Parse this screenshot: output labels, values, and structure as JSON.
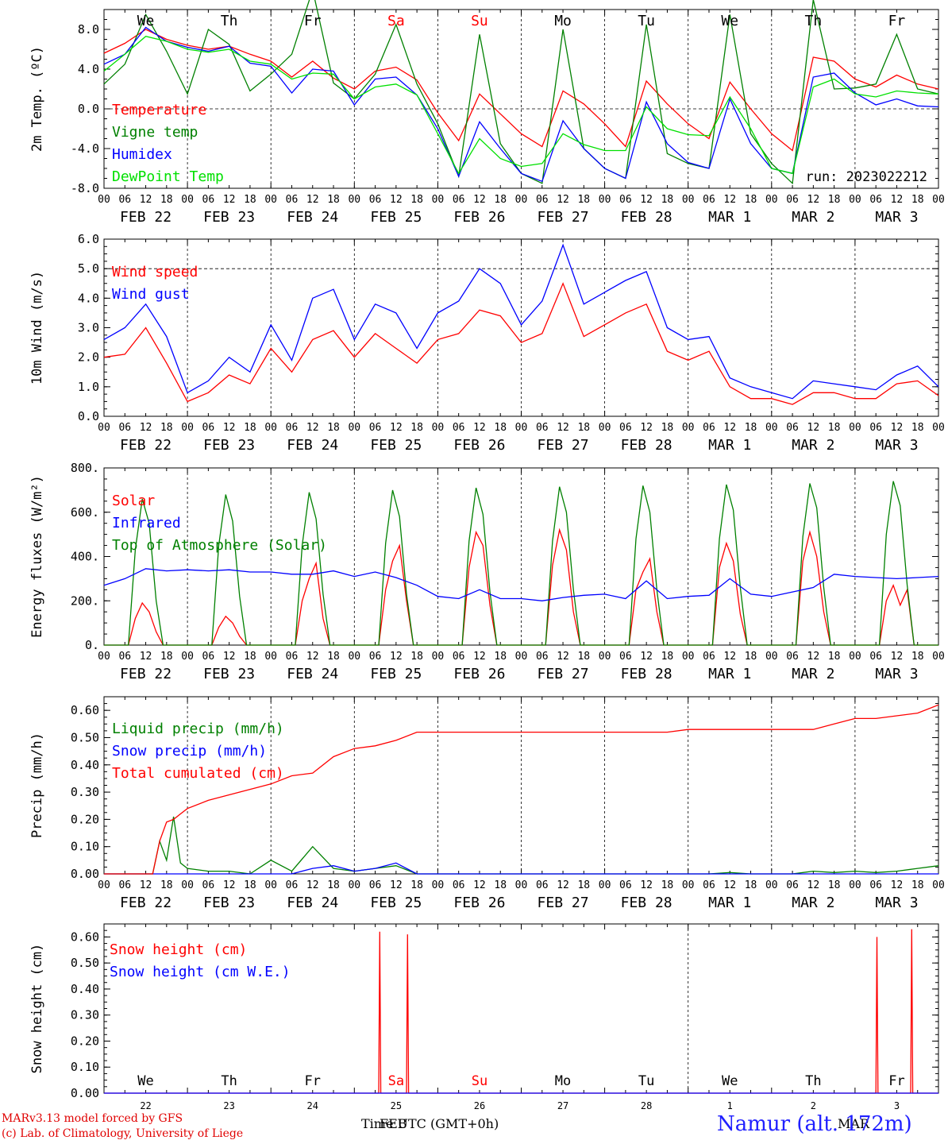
{
  "run_label": "run: 2023022212",
  "model_credit": "MARv3.13 model forced by GFS",
  "lab_credit": "(c) Lab. of Climatology, University of Liege",
  "x_axis_title": "Time UTC (GMT+0h)",
  "x_axis_title_feb": "FEB",
  "x_axis_title_mar": "MAR",
  "station_label": "Namur (alt. 172m)",
  "colors": {
    "red": "#ff0000",
    "blue": "#0000ff",
    "green": "#008000",
    "lightgreen": "#00e000",
    "weekend": "#ff0000"
  },
  "weekdays": [
    "We",
    "Th",
    "Fr",
    "Sa",
    "Su",
    "Mo",
    "Tu",
    "We",
    "Th",
    "Fr"
  ],
  "weekend_days": [
    "Sa",
    "Su"
  ],
  "hour_ticks": [
    "00",
    "06",
    "12",
    "18"
  ],
  "last_tick": "00",
  "date_labels": [
    "FEB 22",
    "FEB 23",
    "FEB 24",
    "FEB 25",
    "FEB 26",
    "FEB 27",
    "FEB 28",
    "MAR  1",
    "MAR  2",
    "MAR  3"
  ],
  "snow_day_numbers": [
    "22",
    "23",
    "24",
    "25",
    "26",
    "27",
    "28",
    "1",
    "2",
    "3"
  ],
  "chart_data": [
    {
      "type": "line",
      "ylabel": "2m Temp. (ºC)",
      "ylim": [
        -8,
        10
      ],
      "yticks": [
        "-8.0",
        "-4.0",
        "0.0",
        "4.0",
        "8.0"
      ],
      "ytick_values": [
        -8,
        -4,
        0,
        4,
        8
      ],
      "reference_lines": [
        0
      ],
      "x_hours": [
        0,
        6,
        12,
        18,
        24,
        30,
        36,
        42,
        48,
        54,
        60,
        66,
        72,
        78,
        84,
        90,
        96,
        102,
        108,
        114,
        120,
        126,
        132,
        138,
        144,
        150,
        156,
        162,
        168,
        174,
        180,
        186,
        192,
        198,
        204,
        210,
        216,
        222,
        228,
        234,
        240
      ],
      "series": [
        {
          "name": "Temperature",
          "color": "red",
          "values": [
            5.6,
            6.6,
            8.0,
            7.0,
            6.4,
            6.0,
            6.3,
            5.5,
            4.8,
            3.2,
            4.8,
            3.1,
            2.0,
            3.8,
            4.2,
            2.9,
            -0.4,
            -3.2,
            1.5,
            -0.5,
            -2.5,
            -3.8,
            1.8,
            0.5,
            -1.5,
            -3.8,
            2.8,
            0.5,
            -1.5,
            -3.0,
            2.7,
            0,
            -2.5,
            -4.2,
            5.2,
            4.8,
            3.0,
            2.2,
            3.4,
            2.5,
            2.0
          ]
        },
        {
          "name": "Vigne temp",
          "color": "green",
          "values": [
            2.5,
            4.5,
            9.5,
            5.8,
            1.5,
            8.0,
            6.5,
            1.8,
            3.5,
            5.5,
            12.0,
            2.6,
            1.0,
            3.5,
            8.5,
            2.5,
            -1.5,
            -6.8,
            7.5,
            -3.5,
            -6.5,
            -7.5,
            8.0,
            -4.0,
            -6.0,
            -7.0,
            8.5,
            -4.5,
            -5.5,
            -6.0,
            9.5,
            -2.5,
            -5.5,
            -7.5,
            11.0,
            2.0,
            2.1,
            2.5,
            7.5,
            2.0,
            1.5
          ]
        },
        {
          "name": "Humidex",
          "color": "blue",
          "values": [
            4.5,
            5.5,
            8.2,
            6.8,
            6.2,
            5.8,
            6.3,
            4.6,
            4.3,
            1.6,
            4.0,
            3.8,
            0.4,
            3.0,
            3.2,
            1.4,
            -2.0,
            -6.8,
            -1.3,
            -4.0,
            -6.5,
            -7.3,
            -1.2,
            -4.0,
            -6.0,
            -7.0,
            0.7,
            -3.5,
            -5.4,
            -6.0,
            1.0,
            -3.5,
            -6.0,
            -6.5,
            3.2,
            3.6,
            1.6,
            0.4,
            1.0,
            0.3,
            0.2
          ]
        },
        {
          "name": "DewPoint Temp",
          "color": "lightgreen",
          "values": [
            3.8,
            5.5,
            7.3,
            6.8,
            6.0,
            5.7,
            6.0,
            4.8,
            4.5,
            3.0,
            3.6,
            3.5,
            1.0,
            2.2,
            2.5,
            1.4,
            -2.5,
            -6.5,
            -3.0,
            -5.0,
            -5.8,
            -5.5,
            -2.5,
            -3.6,
            -4.2,
            -4.2,
            0.2,
            -2.0,
            -2.6,
            -2.7,
            1.2,
            -2.0,
            -6.0,
            -6.5,
            2.2,
            3.0,
            1.5,
            1.2,
            1.8,
            1.6,
            1.5
          ]
        }
      ]
    },
    {
      "type": "line",
      "ylabel": "10m Wind (m/s)",
      "ylim": [
        0,
        6
      ],
      "yticks": [
        "0.0",
        "1.0",
        "2.0",
        "3.0",
        "4.0",
        "5.0",
        "6.0"
      ],
      "ytick_values": [
        0,
        1,
        2,
        3,
        4,
        5,
        6
      ],
      "reference_lines": [
        5
      ],
      "x_hours": [
        0,
        6,
        12,
        18,
        24,
        30,
        36,
        42,
        48,
        54,
        60,
        66,
        72,
        78,
        84,
        90,
        96,
        102,
        108,
        114,
        120,
        126,
        132,
        138,
        144,
        150,
        156,
        162,
        168,
        174,
        180,
        186,
        192,
        198,
        204,
        210,
        216,
        222,
        228,
        234,
        240
      ],
      "series": [
        {
          "name": "Wind speed",
          "color": "red",
          "values": [
            2.0,
            2.1,
            3.0,
            1.8,
            0.5,
            0.8,
            1.4,
            1.1,
            2.3,
            1.5,
            2.6,
            2.9,
            2.0,
            2.8,
            2.3,
            1.8,
            2.6,
            2.8,
            3.6,
            3.4,
            2.5,
            2.8,
            4.5,
            2.7,
            3.1,
            3.5,
            3.8,
            2.2,
            1.9,
            2.2,
            1.0,
            0.6,
            0.6,
            0.4,
            0.8,
            0.8,
            0.6,
            0.6,
            1.1,
            1.2,
            0.7
          ]
        },
        {
          "name": "Wind gust",
          "color": "blue",
          "values": [
            2.6,
            3.0,
            3.8,
            2.7,
            0.8,
            1.2,
            2.0,
            1.5,
            3.1,
            1.9,
            4.0,
            4.3,
            2.6,
            3.8,
            3.5,
            2.3,
            3.5,
            3.9,
            5.0,
            4.5,
            3.1,
            3.9,
            5.8,
            3.8,
            4.2,
            4.6,
            4.9,
            3.0,
            2.6,
            2.7,
            1.3,
            1.0,
            0.8,
            0.6,
            1.2,
            1.1,
            1.0,
            0.9,
            1.4,
            1.7,
            1.0
          ]
        }
      ]
    },
    {
      "type": "line",
      "ylabel": "Energy fluxes (W/m²)",
      "ylim": [
        0,
        800
      ],
      "yticks": [
        "0.",
        "200.",
        "400.",
        "600.",
        "800."
      ],
      "ytick_values": [
        0,
        200,
        400,
        600,
        800
      ],
      "reference_lines": [],
      "x_hours_solar": [
        0,
        7,
        9,
        11,
        13,
        15,
        17,
        24,
        31,
        33,
        35,
        37,
        39,
        41,
        48,
        55,
        57,
        59,
        61,
        63,
        65,
        72,
        79,
        81,
        83,
        85,
        87,
        89,
        96,
        103,
        105,
        107,
        109,
        111,
        113,
        120,
        127,
        129,
        131,
        133,
        135,
        137,
        144,
        151,
        153,
        155,
        157,
        159,
        161,
        168,
        175,
        177,
        179,
        181,
        183,
        185,
        192,
        199,
        201,
        203,
        205,
        207,
        209,
        216,
        223,
        225,
        227,
        229,
        231,
        233,
        240
      ],
      "series": [
        {
          "name": "Solar",
          "color": "red",
          "values": [
            0,
            0,
            120,
            190,
            150,
            60,
            0,
            0,
            0,
            80,
            130,
            100,
            40,
            0,
            0,
            0,
            200,
            300,
            370,
            120,
            0,
            0,
            0,
            250,
            380,
            450,
            200,
            0,
            0,
            0,
            350,
            510,
            450,
            180,
            0,
            0,
            0,
            360,
            520,
            430,
            150,
            0,
            0,
            0,
            250,
            330,
            390,
            150,
            0,
            0,
            0,
            350,
            460,
            380,
            140,
            0,
            0,
            0,
            380,
            510,
            400,
            150,
            0,
            0,
            0,
            200,
            270,
            180,
            250,
            0,
            0
          ]
        },
        {
          "name": "Top of Atmosphere (Solar)",
          "color": "green",
          "values": [
            0,
            0,
            430,
            660,
            550,
            200,
            0,
            0,
            0,
            450,
            680,
            560,
            220,
            0,
            0,
            0,
            450,
            690,
            570,
            230,
            0,
            0,
            0,
            460,
            700,
            580,
            230,
            0,
            0,
            0,
            470,
            710,
            590,
            240,
            0,
            0,
            0,
            470,
            715,
            600,
            250,
            0,
            0,
            0,
            480,
            720,
            600,
            250,
            0,
            0,
            0,
            480,
            725,
            610,
            260,
            0,
            0,
            0,
            490,
            730,
            620,
            260,
            0,
            0,
            0,
            500,
            740,
            630,
            270,
            0,
            0
          ]
        },
        {
          "name": "Infrared",
          "color": "blue",
          "x_hours": [
            0,
            6,
            12,
            18,
            24,
            30,
            36,
            42,
            48,
            54,
            60,
            66,
            72,
            78,
            84,
            90,
            96,
            102,
            108,
            114,
            120,
            126,
            132,
            138,
            144,
            150,
            156,
            162,
            168,
            174,
            180,
            186,
            192,
            198,
            204,
            210,
            216,
            222,
            228,
            234,
            240
          ],
          "values": [
            270,
            300,
            345,
            335,
            340,
            335,
            340,
            330,
            330,
            320,
            320,
            335,
            310,
            330,
            305,
            270,
            220,
            210,
            250,
            210,
            210,
            200,
            215,
            225,
            230,
            210,
            290,
            210,
            220,
            225,
            300,
            230,
            220,
            240,
            260,
            320,
            310,
            305,
            300,
            305,
            310
          ]
        }
      ]
    },
    {
      "type": "line",
      "ylabel": "Precip (mm/h)",
      "ylim": [
        0,
        0.65
      ],
      "yticks": [
        "0.00",
        "0.10",
        "0.20",
        "0.30",
        "0.40",
        "0.50",
        "0.60"
      ],
      "ytick_values": [
        0,
        0.1,
        0.2,
        0.3,
        0.4,
        0.5,
        0.6
      ],
      "reference_lines": [],
      "x_hours": [
        0,
        6,
        12,
        14,
        16,
        18,
        20,
        22,
        24,
        30,
        36,
        42,
        48,
        54,
        60,
        66,
        72,
        78,
        84,
        90,
        96,
        102,
        108,
        114,
        120,
        126,
        132,
        138,
        144,
        150,
        156,
        162,
        168,
        174,
        180,
        186,
        192,
        198,
        204,
        210,
        216,
        222,
        228,
        234,
        240
      ],
      "series": [
        {
          "name": "Liquid precip (mm/h)",
          "color": "green",
          "values": [
            0,
            0,
            0,
            0,
            0.12,
            0.05,
            0.21,
            0.04,
            0.02,
            0.01,
            0.01,
            0,
            0.05,
            0.01,
            0.1,
            0.02,
            0.01,
            0.02,
            0.03,
            0,
            0,
            0,
            0,
            0,
            0,
            0,
            0,
            0,
            0,
            0,
            0,
            0,
            0,
            0,
            0.005,
            0,
            0,
            0,
            0.01,
            0.005,
            0.01,
            0.005,
            0.01,
            0.02,
            0.03
          ]
        },
        {
          "name": "Snow precip (mm/h)",
          "color": "blue",
          "values": [
            0,
            0,
            0,
            0,
            0,
            0,
            0,
            0,
            0,
            0,
            0,
            0,
            0,
            0,
            0.02,
            0.03,
            0.01,
            0.02,
            0.04,
            0,
            0,
            0,
            0,
            0,
            0,
            0,
            0,
            0,
            0,
            0,
            0,
            0,
            0,
            0,
            0,
            0,
            0,
            0,
            0,
            0,
            0,
            0,
            0,
            0,
            0
          ]
        },
        {
          "name": "Total cumulated (cm)",
          "color": "red",
          "values": [
            0,
            0,
            0,
            0,
            0.12,
            0.19,
            0.2,
            0.22,
            0.24,
            0.27,
            0.29,
            0.31,
            0.33,
            0.36,
            0.37,
            0.43,
            0.46,
            0.47,
            0.49,
            0.52,
            0.52,
            0.52,
            0.52,
            0.52,
            0.52,
            0.52,
            0.52,
            0.52,
            0.52,
            0.52,
            0.52,
            0.52,
            0.53,
            0.53,
            0.53,
            0.53,
            0.53,
            0.53,
            0.53,
            0.55,
            0.57,
            0.57,
            0.58,
            0.59,
            0.62
          ]
        }
      ]
    },
    {
      "type": "line",
      "ylabel": "Snow height (cm)",
      "ylim": [
        0,
        0.65
      ],
      "yticks": [
        "0.00",
        "0.10",
        "0.20",
        "0.30",
        "0.40",
        "0.50",
        "0.60"
      ],
      "ytick_values": [
        0,
        0.1,
        0.2,
        0.3,
        0.4,
        0.5,
        0.6
      ],
      "reference_lines": [],
      "x_hours": [
        0,
        79,
        79.3,
        79.6,
        80,
        87,
        87.3,
        87.6,
        88,
        222,
        222.3,
        222.6,
        223,
        232,
        232.3,
        232.6,
        233,
        240
      ],
      "series": [
        {
          "name": "Snow height (cm)",
          "color": "red",
          "values": [
            0,
            0,
            0.62,
            0,
            0,
            0,
            0.61,
            0,
            0,
            0,
            0.6,
            0,
            0,
            0,
            0.63,
            0,
            0,
            0
          ]
        },
        {
          "name": "Snow height (cm W.E.)",
          "color": "blue",
          "values": [
            0,
            0,
            0,
            0,
            0,
            0,
            0,
            0,
            0,
            0,
            0,
            0,
            0,
            0,
            0,
            0,
            0,
            0
          ]
        }
      ]
    }
  ]
}
